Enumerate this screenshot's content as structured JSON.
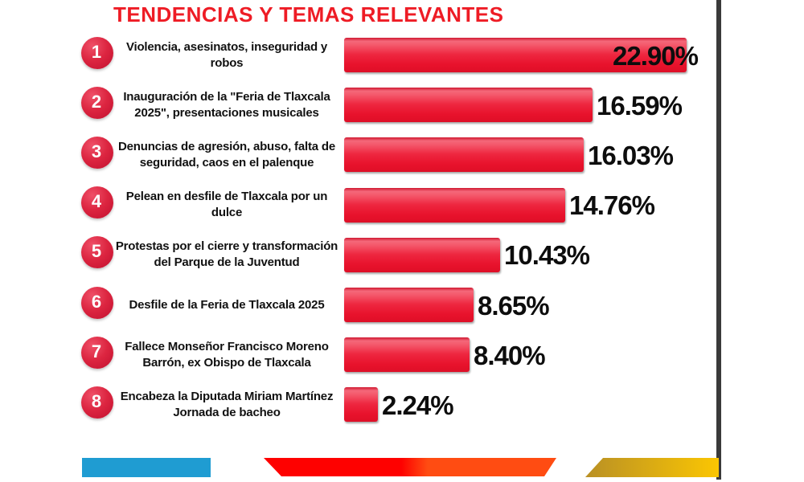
{
  "title": "TENDENCIAS Y TEMAS RELEVANTES",
  "colors": {
    "title_red": "#ee1c25",
    "bar_red": "#ed1c35",
    "badge_red": "#d41f38",
    "text_black": "#111111",
    "divider_gray": "#3a3a3a",
    "footer_blue": "#1f9cd2",
    "footer_red_left": "#fe0100",
    "footer_red_right": "#ff4c12",
    "footer_gold_left": "#b99025",
    "footer_gold_right": "#fbc602"
  },
  "chart_data": {
    "type": "bar",
    "orientation": "horizontal",
    "title": "TENDENCIAS Y TEMAS RELEVANTES",
    "unit": "%",
    "xlim": [
      0,
      24
    ],
    "legend": "none",
    "grid": false,
    "categories": [
      "Violencia, asesinatos, inseguridad y robos",
      "Inauguración de la \"Feria de Tlaxcala 2025\", presentaciones musicales",
      "Denuncias de agresión, abuso, falta de seguridad, caos en el palenque",
      "Pelean en desfile de Tlaxcala por un dulce",
      "Protestas por el cierre y transformación del Parque de la Juventud",
      "Desfile de la Feria de Tlaxcala 2025",
      "Fallece Monseñor Francisco Moreno Barrón, ex Obispo de Tlaxcala",
      "Encabeza la Diputada Miriam Martínez Jornada de bacheo"
    ],
    "values": [
      22.9,
      16.59,
      16.03,
      14.76,
      10.43,
      8.65,
      8.4,
      2.24
    ],
    "items": [
      {
        "rank": "1",
        "label": "Violencia, asesinatos, inseguridad y robos",
        "value": 22.9,
        "value_label": "22.90%"
      },
      {
        "rank": "2",
        "label": "Inauguración de la \"Feria de Tlaxcala 2025\", presentaciones musicales",
        "value": 16.59,
        "value_label": "16.59%"
      },
      {
        "rank": "3",
        "label": "Denuncias de agresión, abuso, falta de seguridad, caos en el palenque",
        "value": 16.03,
        "value_label": "16.03%"
      },
      {
        "rank": "4",
        "label": "Pelean en desfile de Tlaxcala por un dulce",
        "value": 14.76,
        "value_label": "14.76%"
      },
      {
        "rank": "5",
        "label": "Protestas por el cierre y transformación del Parque de la Juventud",
        "value": 10.43,
        "value_label": "10.43%"
      },
      {
        "rank": "6",
        "label": "Desfile de la Feria de Tlaxcala 2025",
        "value": 8.65,
        "value_label": "8.65%"
      },
      {
        "rank": "7",
        "label": "Fallece Monseñor Francisco Moreno Barrón, ex Obispo de Tlaxcala",
        "value": 8.4,
        "value_label": "8.40%"
      },
      {
        "rank": "8",
        "label": "Encabeza la Diputada Miriam Martínez Jornada de bacheo",
        "value": 2.24,
        "value_label": "2.24%"
      }
    ]
  }
}
